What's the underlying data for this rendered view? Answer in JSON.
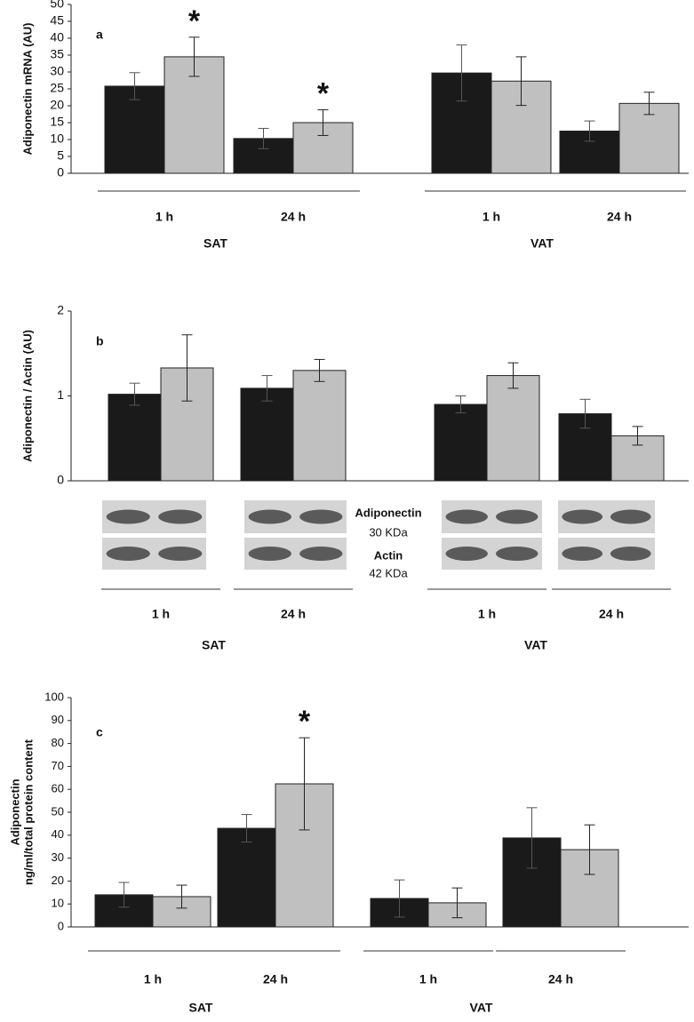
{
  "chart_data": [
    {
      "type": "bar",
      "panel": "a",
      "ylabel": [
        "Adiponectin mRNA (AU)"
      ],
      "categories": [
        "1 h",
        "24 h",
        "1 h",
        "24 h"
      ],
      "groups": [
        "SAT",
        "VAT"
      ],
      "series": [
        {
          "color": "#1a1a1a",
          "values": [
            25.8,
            10.3,
            29.7,
            12.5
          ],
          "errors": [
            4,
            3,
            8.3,
            3
          ]
        },
        {
          "color": "#c0c0c0",
          "values": [
            34.5,
            15,
            27.3,
            20.7
          ],
          "errors": [
            5.8,
            3.8,
            7.2,
            3.3
          ]
        }
      ],
      "annotations": [
        {
          "text": "*",
          "series": 1,
          "index": 0
        },
        {
          "text": "*",
          "series": 1,
          "index": 1
        }
      ],
      "ylim": [
        0,
        50
      ],
      "yticks": [
        0,
        5,
        10,
        15,
        20,
        25,
        30,
        35,
        40,
        45,
        50
      ]
    },
    {
      "type": "bar",
      "panel": "b",
      "ylabel": [
        "Adiponectin / Actin (AU)"
      ],
      "categories": [
        "1 h",
        "24 h",
        "1 h",
        "24 h"
      ],
      "groups": [
        "SAT",
        "VAT"
      ],
      "series": [
        {
          "color": "#1a1a1a",
          "values": [
            1.02,
            1.09,
            0.9,
            0.79
          ],
          "errors": [
            0.13,
            0.15,
            0.1,
            0.17
          ]
        },
        {
          "color": "#c0c0c0",
          "values": [
            1.33,
            1.3,
            1.24,
            0.53
          ],
          "errors": [
            0.39,
            0.13,
            0.15,
            0.11
          ]
        }
      ],
      "blot_labels": [
        "Adiponectin",
        "30 KDa",
        "Actin",
        "42 KDa"
      ],
      "ylim": [
        0,
        2
      ],
      "yticks": [
        0,
        1,
        2
      ]
    },
    {
      "type": "bar",
      "panel": "c",
      "ylabel": [
        "Adiponectin",
        "ng/ml/total protein content"
      ],
      "categories": [
        "1 h",
        "24 h",
        "1 h",
        "24 h"
      ],
      "groups": [
        "SAT",
        "VAT"
      ],
      "series": [
        {
          "color": "#1a1a1a",
          "values": [
            14,
            43,
            12.4,
            38.8
          ],
          "errors": [
            5.4,
            6,
            8.1,
            13.2
          ]
        },
        {
          "color": "#c0c0c0",
          "values": [
            13.2,
            62.4,
            10.5,
            33.7
          ],
          "errors": [
            5,
            20.1,
            6.5,
            10.8
          ]
        }
      ],
      "annotations": [
        {
          "text": "*",
          "series": 1,
          "index": 1
        }
      ],
      "ylim": [
        0,
        100
      ],
      "yticks": [
        0,
        10,
        20,
        30,
        40,
        50,
        60,
        70,
        80,
        90,
        100
      ]
    }
  ]
}
